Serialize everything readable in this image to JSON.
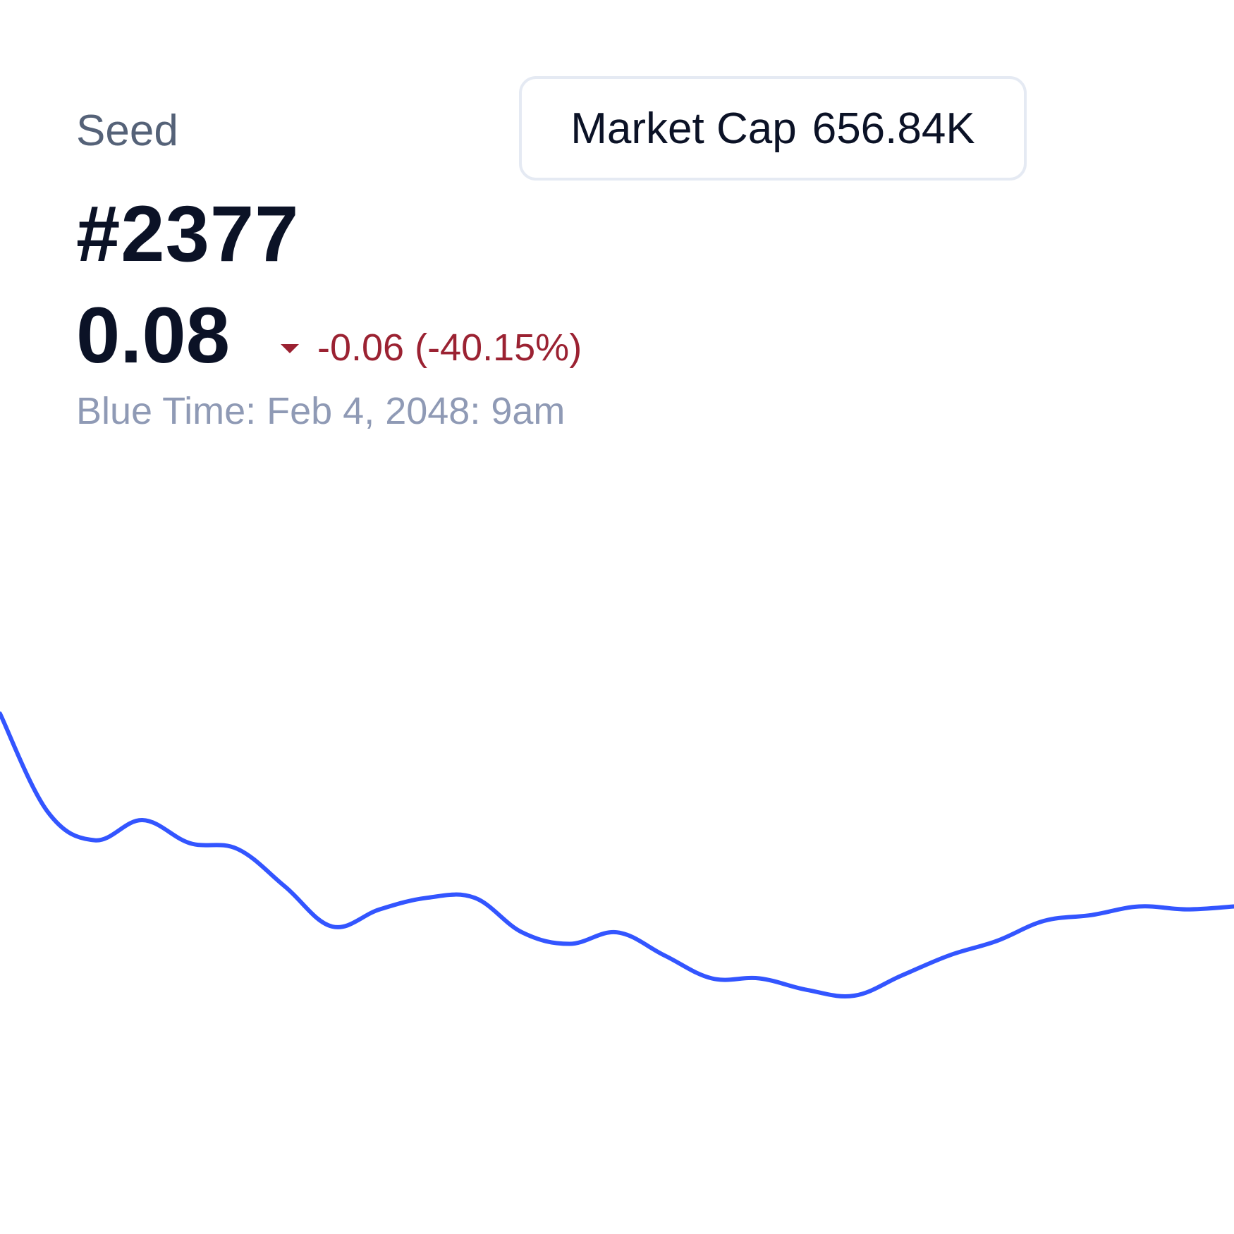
{
  "header": {
    "name": "Seed",
    "rank": "#2377",
    "price": "0.08",
    "change": "-0.06 (-40.15%)",
    "change_direction": "down",
    "timestamp": "Blue Time: Feb 4, 2048: 9am"
  },
  "market_cap": {
    "label": "Market Cap",
    "value": "656.84K"
  },
  "colors": {
    "line": "#3355ff",
    "negative": "#9b2232",
    "title": "#0b1226",
    "muted": "#8f9ab5"
  },
  "chart_data": {
    "type": "line",
    "title": "",
    "xlabel": "",
    "ylabel": "",
    "grid": false,
    "series": [
      {
        "values": [
          100,
          66,
          56,
          63,
          55,
          53,
          40,
          26,
          32,
          36,
          36,
          24,
          20,
          24,
          16,
          8,
          8,
          4,
          2,
          9,
          16,
          21,
          28,
          30,
          33,
          32,
          33
        ]
      }
    ]
  }
}
